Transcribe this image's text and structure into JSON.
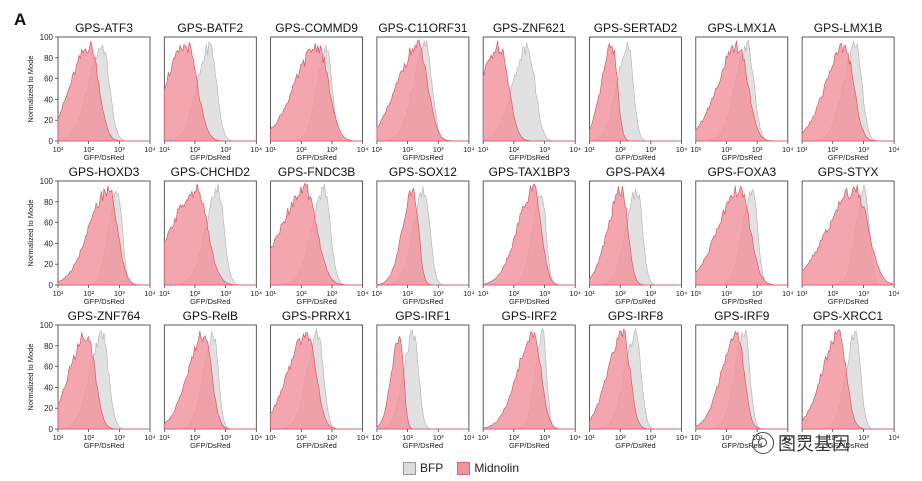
{
  "panel_letter": "A",
  "legend": {
    "bfp_label": "BFP",
    "midnolin_label": "Midnolin",
    "colors": {
      "bfp": "#dcdcdc",
      "midnolin": "#f2939c"
    }
  },
  "watermark": {
    "text": "图灵基因"
  },
  "chart_data": {
    "type": "histogram-grid",
    "ylabel": "Normalized to Mode",
    "xlabel": "GFP/DsRed",
    "ylim": [
      0,
      100
    ],
    "yticks": [
      0,
      20,
      40,
      60,
      80,
      100
    ],
    "x_scale": "log",
    "xlim_log10": [
      1,
      4
    ],
    "xtick_labels": [
      "10¹",
      "10²",
      "10³",
      "10⁴"
    ],
    "series_names": [
      "BFP",
      "Midnolin"
    ],
    "panels": [
      {
        "title": "GPS-ATF3",
        "bfp_peak_log10": 2.45,
        "bfp_width": 0.28,
        "midnolin_peak_log10": 2.05,
        "midnolin_width": 0.35
      },
      {
        "title": "GPS-BATF2",
        "bfp_peak_log10": 2.5,
        "bfp_width": 0.26,
        "midnolin_peak_log10": 1.75,
        "midnolin_width": 0.4
      },
      {
        "title": "GPS-COMMD9",
        "bfp_peak_log10": 2.85,
        "bfp_width": 0.2,
        "midnolin_peak_log10": 2.55,
        "midnolin_width": 0.42
      },
      {
        "title": "GPS-C11ORF31",
        "bfp_peak_log10": 2.6,
        "bfp_width": 0.25,
        "midnolin_peak_log10": 2.35,
        "midnolin_width": 0.38
      },
      {
        "title": "GPS-ZNF621",
        "bfp_peak_log10": 2.45,
        "bfp_width": 0.3,
        "midnolin_peak_log10": 1.55,
        "midnolin_width": 0.35
      },
      {
        "title": "GPS-SERTAD2",
        "bfp_peak_log10": 2.25,
        "bfp_width": 0.22,
        "midnolin_peak_log10": 1.75,
        "midnolin_width": 0.2
      },
      {
        "title": "GPS-LMX1A",
        "bfp_peak_log10": 2.7,
        "bfp_width": 0.25,
        "midnolin_peak_log10": 2.4,
        "midnolin_width": 0.38
      },
      {
        "title": "GPS-LMX1B",
        "bfp_peak_log10": 2.75,
        "bfp_width": 0.25,
        "midnolin_peak_log10": 2.4,
        "midnolin_width": 0.35
      },
      {
        "title": "GPS-HOXD3",
        "bfp_peak_log10": 2.95,
        "bfp_width": 0.18,
        "midnolin_peak_log10": 2.65,
        "midnolin_width": 0.35
      },
      {
        "title": "GPS-CHCHD2",
        "bfp_peak_log10": 2.75,
        "bfp_width": 0.25,
        "midnolin_peak_log10": 2.05,
        "midnolin_width": 0.45
      },
      {
        "title": "GPS-FNDC3B",
        "bfp_peak_log10": 2.75,
        "bfp_width": 0.25,
        "midnolin_peak_log10": 2.15,
        "midnolin_width": 0.45
      },
      {
        "title": "GPS-SOX12",
        "bfp_peak_log10": 2.55,
        "bfp_width": 0.22,
        "midnolin_peak_log10": 2.2,
        "midnolin_width": 0.2
      },
      {
        "title": "GPS-TAX1BP3",
        "bfp_peak_log10": 2.9,
        "bfp_width": 0.18,
        "midnolin_peak_log10": 2.65,
        "midnolin_width": 0.3
      },
      {
        "title": "GPS-PAX4",
        "bfp_peak_log10": 2.55,
        "bfp_width": 0.22,
        "midnolin_peak_log10": 2.05,
        "midnolin_width": 0.25
      },
      {
        "title": "GPS-FOXA3",
        "bfp_peak_log10": 2.85,
        "bfp_width": 0.2,
        "midnolin_peak_log10": 2.45,
        "midnolin_width": 0.4
      },
      {
        "title": "GPS-STYX",
        "bfp_peak_log10": 3.05,
        "bfp_width": 0.18,
        "midnolin_peak_log10": 2.75,
        "midnolin_width": 0.5
      },
      {
        "title": "GPS-ZNF764",
        "bfp_peak_log10": 2.45,
        "bfp_width": 0.25,
        "midnolin_peak_log10": 1.95,
        "midnolin_width": 0.32
      },
      {
        "title": "GPS-RelB",
        "bfp_peak_log10": 2.6,
        "bfp_width": 0.2,
        "midnolin_peak_log10": 2.3,
        "midnolin_width": 0.3
      },
      {
        "title": "GPS-PRRX1",
        "bfp_peak_log10": 2.55,
        "bfp_width": 0.22,
        "midnolin_peak_log10": 2.2,
        "midnolin_width": 0.35
      },
      {
        "title": "GPS-IRF1",
        "bfp_peak_log10": 2.2,
        "bfp_width": 0.2,
        "midnolin_peak_log10": 1.75,
        "midnolin_width": 0.15
      },
      {
        "title": "GPS-IRF2",
        "bfp_peak_log10": 2.95,
        "bfp_width": 0.15,
        "midnolin_peak_log10": 2.65,
        "midnolin_width": 0.3
      },
      {
        "title": "GPS-IRF8",
        "bfp_peak_log10": 2.5,
        "bfp_width": 0.22,
        "midnolin_peak_log10": 2.1,
        "midnolin_width": 0.28
      },
      {
        "title": "GPS-IRF9",
        "bfp_peak_log10": 2.6,
        "bfp_width": 0.2,
        "midnolin_peak_log10": 2.35,
        "midnolin_width": 0.28
      },
      {
        "title": "GPS-XRCC1",
        "bfp_peak_log10": 2.75,
        "bfp_width": 0.2,
        "midnolin_peak_log10": 2.2,
        "midnolin_width": 0.3
      }
    ]
  }
}
